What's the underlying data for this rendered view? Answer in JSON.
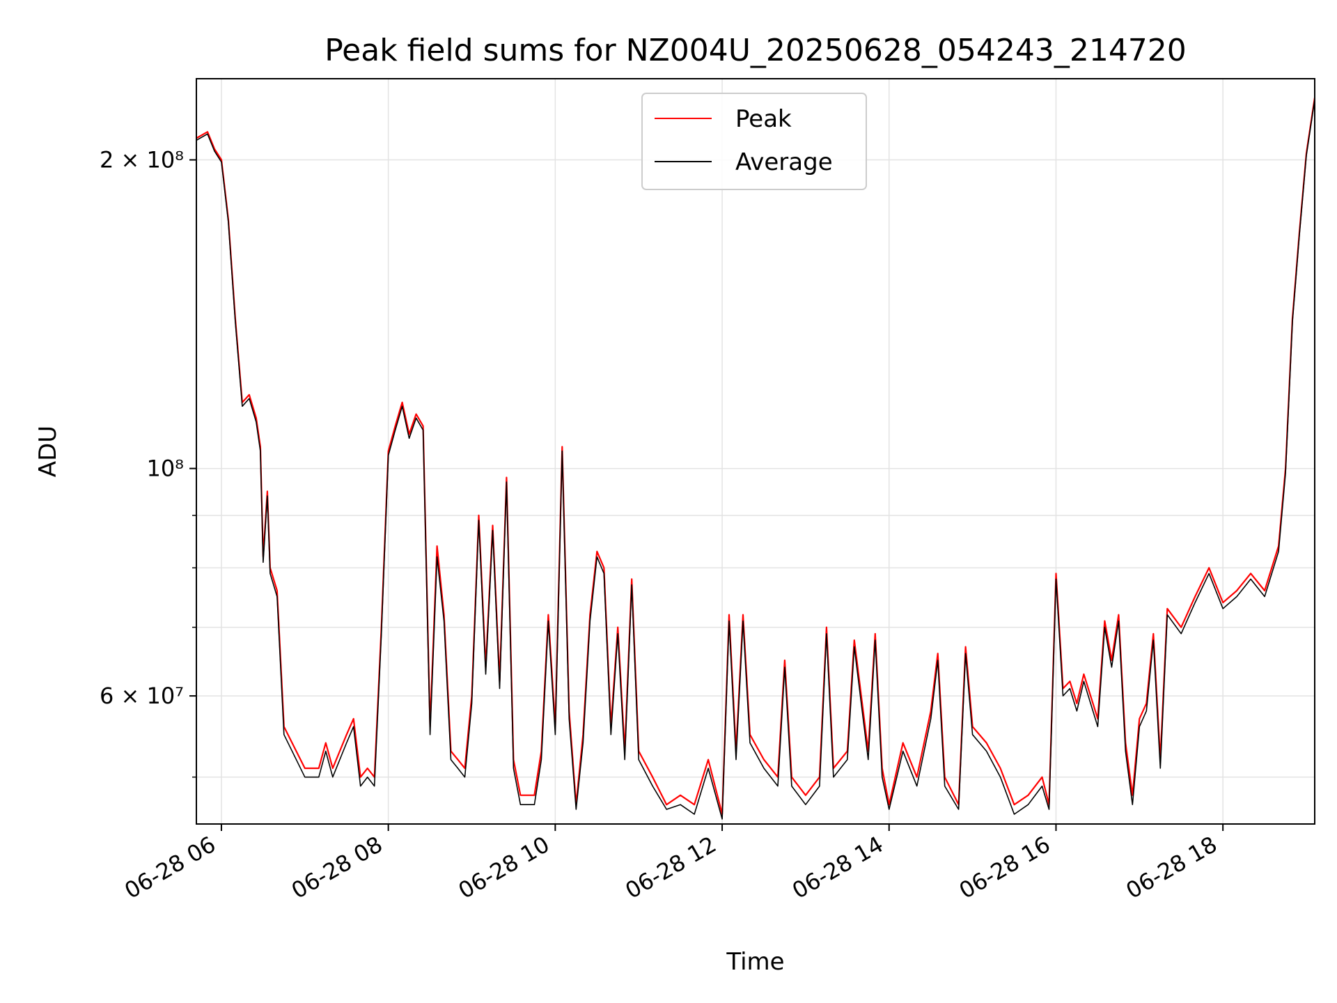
{
  "chart_data": {
    "type": "line",
    "title": "Peak field sums for NZ004U_20250628_054243_214720",
    "xlabel": "Time",
    "ylabel": "ADU",
    "x_scale": "time",
    "y_scale": "log",
    "xlim": [
      "2025-06-28 05:42",
      "2025-06-28 19:06"
    ],
    "ylim": [
      45000000,
      240000000
    ],
    "grid": true,
    "legend_position": "top-center",
    "x_ticks": [
      {
        "value": "2025-06-28 06:00",
        "label": "06-28 06"
      },
      {
        "value": "2025-06-28 08:00",
        "label": "06-28 08"
      },
      {
        "value": "2025-06-28 10:00",
        "label": "06-28 10"
      },
      {
        "value": "2025-06-28 12:00",
        "label": "06-28 12"
      },
      {
        "value": "2025-06-28 14:00",
        "label": "06-28 14"
      },
      {
        "value": "2025-06-28 16:00",
        "label": "06-28 16"
      },
      {
        "value": "2025-06-28 18:00",
        "label": "06-28 18"
      }
    ],
    "y_ticks_major": [
      {
        "value": 200000000,
        "label": "2 × 10⁸"
      },
      {
        "value": 100000000,
        "label": "10⁸"
      },
      {
        "value": 60000000,
        "label": "6 × 10⁷"
      }
    ],
    "y_ticks_minor": [
      50000000,
      70000000,
      80000000,
      90000000
    ],
    "series": [
      {
        "name": "Peak",
        "color": "#ff0000",
        "x": [
          "2025-06-28 05:42",
          "2025-06-28 05:50",
          "2025-06-28 05:55",
          "2025-06-28 06:00",
          "2025-06-28 06:05",
          "2025-06-28 06:10",
          "2025-06-28 06:15",
          "2025-06-28 06:20",
          "2025-06-28 06:25",
          "2025-06-28 06:28",
          "2025-06-28 06:30",
          "2025-06-28 06:33",
          "2025-06-28 06:35",
          "2025-06-28 06:40",
          "2025-06-28 06:45",
          "2025-06-28 07:00",
          "2025-06-28 07:10",
          "2025-06-28 07:15",
          "2025-06-28 07:20",
          "2025-06-28 07:30",
          "2025-06-28 07:35",
          "2025-06-28 07:40",
          "2025-06-28 07:45",
          "2025-06-28 07:50",
          "2025-06-28 07:55",
          "2025-06-28 08:00",
          "2025-06-28 08:05",
          "2025-06-28 08:10",
          "2025-06-28 08:15",
          "2025-06-28 08:20",
          "2025-06-28 08:25",
          "2025-06-28 08:30",
          "2025-06-28 08:35",
          "2025-06-28 08:40",
          "2025-06-28 08:45",
          "2025-06-28 08:50",
          "2025-06-28 08:55",
          "2025-06-28 09:00",
          "2025-06-28 09:05",
          "2025-06-28 09:10",
          "2025-06-28 09:15",
          "2025-06-28 09:20",
          "2025-06-28 09:25",
          "2025-06-28 09:30",
          "2025-06-28 09:35",
          "2025-06-28 09:40",
          "2025-06-28 09:45",
          "2025-06-28 09:50",
          "2025-06-28 09:55",
          "2025-06-28 10:00",
          "2025-06-28 10:05",
          "2025-06-28 10:10",
          "2025-06-28 10:15",
          "2025-06-28 10:20",
          "2025-06-28 10:25",
          "2025-06-28 10:30",
          "2025-06-28 10:35",
          "2025-06-28 10:40",
          "2025-06-28 10:45",
          "2025-06-28 10:50",
          "2025-06-28 10:55",
          "2025-06-28 11:00",
          "2025-06-28 11:10",
          "2025-06-28 11:20",
          "2025-06-28 11:30",
          "2025-06-28 11:40",
          "2025-06-28 11:50",
          "2025-06-28 12:00",
          "2025-06-28 12:05",
          "2025-06-28 12:10",
          "2025-06-28 12:15",
          "2025-06-28 12:20",
          "2025-06-28 12:30",
          "2025-06-28 12:40",
          "2025-06-28 12:45",
          "2025-06-28 12:50",
          "2025-06-28 13:00",
          "2025-06-28 13:10",
          "2025-06-28 13:15",
          "2025-06-28 13:20",
          "2025-06-28 13:30",
          "2025-06-28 13:35",
          "2025-06-28 13:40",
          "2025-06-28 13:45",
          "2025-06-28 13:50",
          "2025-06-28 13:55",
          "2025-06-28 14:00",
          "2025-06-28 14:10",
          "2025-06-28 14:20",
          "2025-06-28 14:30",
          "2025-06-28 14:35",
          "2025-06-28 14:40",
          "2025-06-28 14:50",
          "2025-06-28 14:55",
          "2025-06-28 15:00",
          "2025-06-28 15:10",
          "2025-06-28 15:20",
          "2025-06-28 15:30",
          "2025-06-28 15:40",
          "2025-06-28 15:50",
          "2025-06-28 15:55",
          "2025-06-28 16:00",
          "2025-06-28 16:05",
          "2025-06-28 16:10",
          "2025-06-28 16:15",
          "2025-06-28 16:20",
          "2025-06-28 16:30",
          "2025-06-28 16:35",
          "2025-06-28 16:40",
          "2025-06-28 16:45",
          "2025-06-28 16:50",
          "2025-06-28 16:55",
          "2025-06-28 17:00",
          "2025-06-28 17:05",
          "2025-06-28 17:10",
          "2025-06-28 17:15",
          "2025-06-28 17:20",
          "2025-06-28 17:30",
          "2025-06-28 17:40",
          "2025-06-28 17:50",
          "2025-06-28 18:00",
          "2025-06-28 18:10",
          "2025-06-28 18:20",
          "2025-06-28 18:30",
          "2025-06-28 18:40",
          "2025-06-28 18:45",
          "2025-06-28 18:50",
          "2025-06-28 18:55",
          "2025-06-28 19:00",
          "2025-06-28 19:06"
        ],
        "values": [
          210000000,
          213000000,
          205000000,
          200000000,
          175000000,
          140000000,
          116000000,
          118000000,
          112000000,
          105000000,
          82000000,
          95000000,
          80000000,
          76000000,
          56000000,
          51000000,
          51000000,
          54000000,
          51000000,
          55000000,
          57000000,
          50000000,
          51000000,
          50000000,
          70000000,
          104000000,
          110000000,
          116000000,
          108000000,
          113000000,
          110000000,
          56000000,
          84000000,
          72000000,
          53000000,
          52000000,
          51000000,
          60000000,
          90000000,
          64000000,
          88000000,
          62000000,
          98000000,
          52000000,
          48000000,
          48000000,
          48000000,
          53000000,
          72000000,
          56000000,
          105000000,
          58000000,
          47000000,
          55000000,
          72000000,
          83000000,
          80000000,
          56000000,
          70000000,
          53000000,
          78000000,
          53000000,
          50000000,
          47000000,
          48000000,
          47000000,
          52000000,
          46000000,
          72000000,
          53000000,
          72000000,
          55000000,
          52000000,
          50000000,
          65000000,
          50000000,
          48000000,
          50000000,
          70000000,
          51000000,
          53000000,
          68000000,
          60000000,
          53000000,
          69000000,
          51000000,
          47000000,
          54000000,
          50000000,
          58000000,
          66000000,
          50000000,
          47000000,
          67000000,
          56000000,
          54000000,
          51000000,
          47000000,
          48000000,
          50000000,
          47000000,
          79000000,
          61000000,
          62000000,
          59000000,
          63000000,
          57000000,
          71000000,
          65000000,
          72000000,
          54000000,
          48000000,
          57000000,
          59000000,
          69000000,
          52000000,
          73000000,
          70000000,
          75000000,
          80000000,
          74000000,
          76000000,
          79000000,
          76000000,
          84000000,
          100000000,
          140000000,
          170000000,
          203000000,
          230000000
        ]
      },
      {
        "name": "Average",
        "color": "#000000",
        "x": [
          "2025-06-28 05:42",
          "2025-06-28 05:50",
          "2025-06-28 05:55",
          "2025-06-28 06:00",
          "2025-06-28 06:05",
          "2025-06-28 06:10",
          "2025-06-28 06:15",
          "2025-06-28 06:20",
          "2025-06-28 06:25",
          "2025-06-28 06:28",
          "2025-06-28 06:30",
          "2025-06-28 06:33",
          "2025-06-28 06:35",
          "2025-06-28 06:40",
          "2025-06-28 06:45",
          "2025-06-28 07:00",
          "2025-06-28 07:10",
          "2025-06-28 07:15",
          "2025-06-28 07:20",
          "2025-06-28 07:30",
          "2025-06-28 07:35",
          "2025-06-28 07:40",
          "2025-06-28 07:45",
          "2025-06-28 07:50",
          "2025-06-28 07:55",
          "2025-06-28 08:00",
          "2025-06-28 08:05",
          "2025-06-28 08:10",
          "2025-06-28 08:15",
          "2025-06-28 08:20",
          "2025-06-28 08:25",
          "2025-06-28 08:30",
          "2025-06-28 08:35",
          "2025-06-28 08:40",
          "2025-06-28 08:45",
          "2025-06-28 08:50",
          "2025-06-28 08:55",
          "2025-06-28 09:00",
          "2025-06-28 09:05",
          "2025-06-28 09:10",
          "2025-06-28 09:15",
          "2025-06-28 09:20",
          "2025-06-28 09:25",
          "2025-06-28 09:30",
          "2025-06-28 09:35",
          "2025-06-28 09:40",
          "2025-06-28 09:45",
          "2025-06-28 09:50",
          "2025-06-28 09:55",
          "2025-06-28 10:00",
          "2025-06-28 10:05",
          "2025-06-28 10:10",
          "2025-06-28 10:15",
          "2025-06-28 10:20",
          "2025-06-28 10:25",
          "2025-06-28 10:30",
          "2025-06-28 10:35",
          "2025-06-28 10:40",
          "2025-06-28 10:45",
          "2025-06-28 10:50",
          "2025-06-28 10:55",
          "2025-06-28 11:00",
          "2025-06-28 11:10",
          "2025-06-28 11:20",
          "2025-06-28 11:30",
          "2025-06-28 11:40",
          "2025-06-28 11:50",
          "2025-06-28 12:00",
          "2025-06-28 12:05",
          "2025-06-28 12:10",
          "2025-06-28 12:15",
          "2025-06-28 12:20",
          "2025-06-28 12:30",
          "2025-06-28 12:40",
          "2025-06-28 12:45",
          "2025-06-28 12:50",
          "2025-06-28 13:00",
          "2025-06-28 13:10",
          "2025-06-28 13:15",
          "2025-06-28 13:20",
          "2025-06-28 13:30",
          "2025-06-28 13:35",
          "2025-06-28 13:40",
          "2025-06-28 13:45",
          "2025-06-28 13:50",
          "2025-06-28 13:55",
          "2025-06-28 14:00",
          "2025-06-28 14:10",
          "2025-06-28 14:20",
          "2025-06-28 14:30",
          "2025-06-28 14:35",
          "2025-06-28 14:40",
          "2025-06-28 14:50",
          "2025-06-28 14:55",
          "2025-06-28 15:00",
          "2025-06-28 15:10",
          "2025-06-28 15:20",
          "2025-06-28 15:30",
          "2025-06-28 15:40",
          "2025-06-28 15:50",
          "2025-06-28 15:55",
          "2025-06-28 16:00",
          "2025-06-28 16:05",
          "2025-06-28 16:10",
          "2025-06-28 16:15",
          "2025-06-28 16:20",
          "2025-06-28 16:30",
          "2025-06-28 16:35",
          "2025-06-28 16:40",
          "2025-06-28 16:45",
          "2025-06-28 16:50",
          "2025-06-28 16:55",
          "2025-06-28 17:00",
          "2025-06-28 17:05",
          "2025-06-28 17:10",
          "2025-06-28 17:15",
          "2025-06-28 17:20",
          "2025-06-28 17:30",
          "2025-06-28 17:40",
          "2025-06-28 17:50",
          "2025-06-28 18:00",
          "2025-06-28 18:10",
          "2025-06-28 18:20",
          "2025-06-28 18:30",
          "2025-06-28 18:40",
          "2025-06-28 18:45",
          "2025-06-28 18:50",
          "2025-06-28 18:55",
          "2025-06-28 19:00",
          "2025-06-28 19:06"
        ],
        "values": [
          209000000,
          212000000,
          204000000,
          199000000,
          174000000,
          139000000,
          115000000,
          117000000,
          111000000,
          104000000,
          81000000,
          94000000,
          79000000,
          75000000,
          55000000,
          50000000,
          50000000,
          53000000,
          50000000,
          54000000,
          56000000,
          49000000,
          50000000,
          49000000,
          69000000,
          103000000,
          109000000,
          115000000,
          107000000,
          112000000,
          109000000,
          55000000,
          82000000,
          71000000,
          52000000,
          51000000,
          50000000,
          59000000,
          89000000,
          63000000,
          87000000,
          61000000,
          97000000,
          51000000,
          47000000,
          47000000,
          47000000,
          52000000,
          71000000,
          55000000,
          104000000,
          57000000,
          46500000,
          54000000,
          71000000,
          82000000,
          79000000,
          55000000,
          69000000,
          52000000,
          77000000,
          52000000,
          49000000,
          46500000,
          47000000,
          46000000,
          51000000,
          45500000,
          71000000,
          52000000,
          71000000,
          54000000,
          51000000,
          49000000,
          64000000,
          49000000,
          47000000,
          49000000,
          69000000,
          50000000,
          52000000,
          67000000,
          59000000,
          52000000,
          68000000,
          50000000,
          46500000,
          53000000,
          49000000,
          57000000,
          65000000,
          49000000,
          46500000,
          66000000,
          55000000,
          53000000,
          50000000,
          46000000,
          47000000,
          49000000,
          46500000,
          78000000,
          60000000,
          61000000,
          58000000,
          62000000,
          56000000,
          70000000,
          64000000,
          71000000,
          53000000,
          47000000,
          56000000,
          58000000,
          68000000,
          51000000,
          72000000,
          69000000,
          74000000,
          79000000,
          73000000,
          75000000,
          78000000,
          75000000,
          83000000,
          99000000,
          139000000,
          169000000,
          202000000,
          229000000
        ]
      }
    ]
  }
}
